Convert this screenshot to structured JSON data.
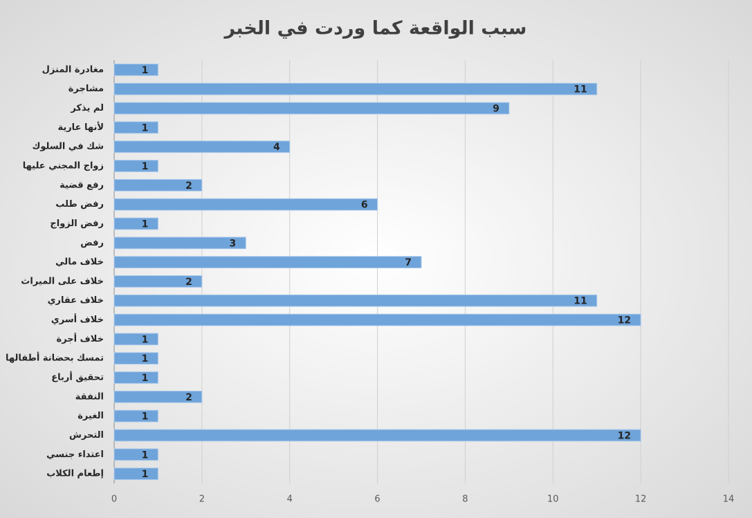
{
  "chart_data": {
    "type": "bar",
    "orientation": "horizontal",
    "title": "سبب الواقعة كما وردت في الخبر",
    "categories": [
      "مغادرة المنزل",
      "مشاجرة",
      "لم يذكر",
      "لأنها عارية",
      "شك في السلوك",
      "زواج المجني عليها",
      "رفع قضية",
      "رفض طلب",
      "رفض الزواج",
      "رفض",
      "خلاف مالي",
      "خلاف على الميراث",
      "خلاف عقاري",
      "خلاف أسري",
      "خلاف أجرة",
      "تمسك بحضانة أطفالها",
      "تحقيق أرباع",
      "النفقة",
      "الغيرة",
      "التحرش",
      "اعتداء جنسي",
      "إطعام الكلاب"
    ],
    "values": [
      1,
      11,
      9,
      1,
      4,
      1,
      2,
      6,
      1,
      3,
      7,
      2,
      11,
      12,
      1,
      1,
      1,
      2,
      1,
      12,
      1,
      1
    ],
    "color": "#6fa4da",
    "xlim": [
      0,
      14
    ],
    "xticks": [
      0,
      2,
      4,
      6,
      8,
      10,
      12,
      14
    ],
    "grid": true
  }
}
